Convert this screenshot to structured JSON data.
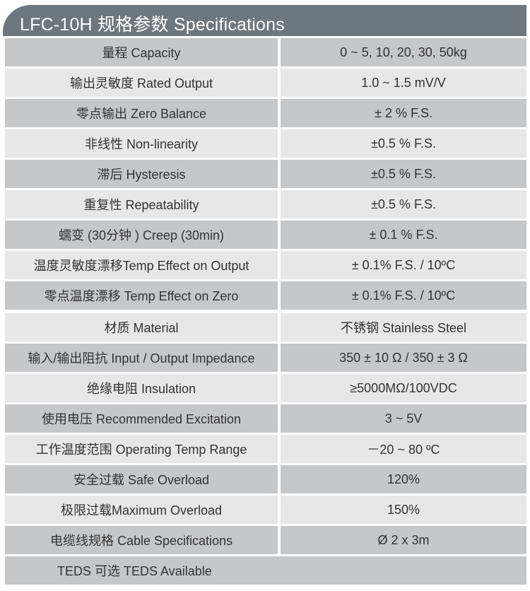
{
  "header": {
    "title": "LFC-10H 规格参数 Specifications"
  },
  "colors": {
    "header": "#6c7780",
    "row_dark": "#c6c7c9",
    "row_light": "#e7e7e8"
  },
  "specs": [
    {
      "label": "量程 Capacity",
      "value": "0 ~ 5, 10, 20, 30, 50kg"
    },
    {
      "label": "输出灵敏度 Rated Output",
      "value": "1.0 ~ 1.5 mV/V"
    },
    {
      "label": "零点输出  Zero Balance",
      "value": "± 2 % F.S."
    },
    {
      "label": "非线性 Non-linearity",
      "value": "±0.5 % F.S."
    },
    {
      "label": "滞后 Hysteresis",
      "value": "±0.5 % F.S."
    },
    {
      "label": "重复性 Repeatability",
      "value": "±0.5 % F.S."
    },
    {
      "label": "蠕变 (30分钟 ) Creep (30min)",
      "value": "± 0.1 % F.S."
    },
    {
      "label": "温度灵敏度漂移Temp Effect on Output",
      "value": "±  0.1% F.S. / 10ºC"
    },
    {
      "label": "零点温度漂移 Temp Effect on Zero",
      "value": "±  0.1% F.S. / 10ºC"
    },
    {
      "label": "材质 Material",
      "value": "不锈钢 Stainless Steel"
    },
    {
      "label": "输入/输出阻抗 Input / Output Impedance",
      "value": "350 ± 10 Ω  / 350 ± 3 Ω"
    },
    {
      "label": "绝缘电阻  Insulation",
      "value": "≥5000MΩ/100VDC"
    },
    {
      "label": "使用电压 Recommended Excitation",
      "value": "3 ~ 5V"
    },
    {
      "label": "工作温度范围 Operating Temp  Range",
      "value": "－20 ~ 80 ºC"
    },
    {
      "label": "安全过载 Safe Overload",
      "value": "120%"
    },
    {
      "label": "极限过载Maximum Overload",
      "value": "150%"
    },
    {
      "label": "电缆线规格 Cable Specifications",
      "value": "Ø 2 x 3m"
    }
  ],
  "footer_row": {
    "label": "TEDS 可选 TEDS Available"
  }
}
